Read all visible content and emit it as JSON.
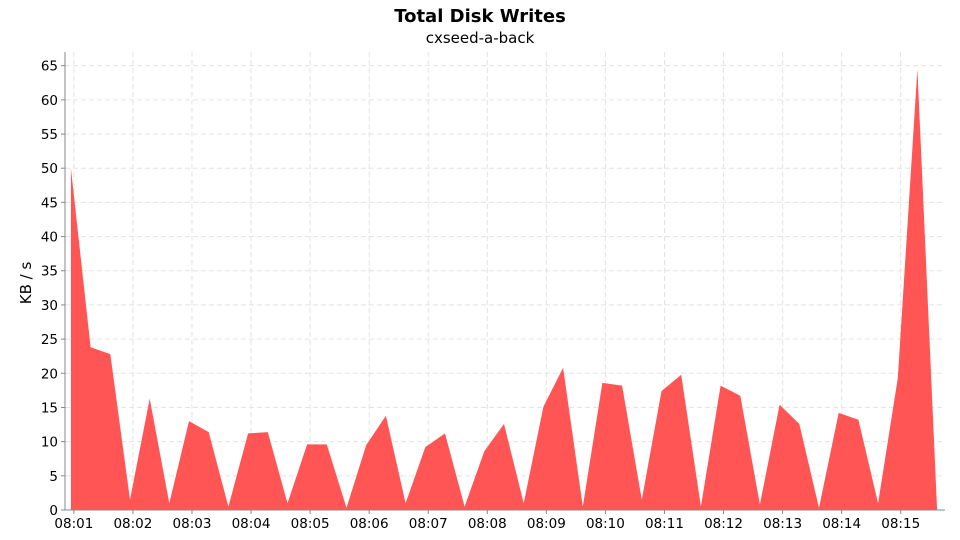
{
  "chart_data": {
    "type": "area",
    "title": "Total Disk Writes",
    "subtitle": "cxseed-a-back",
    "xlabel": "",
    "ylabel": "KB / s",
    "ylim": [
      0,
      67
    ],
    "yticks": [
      0,
      5,
      10,
      15,
      20,
      25,
      30,
      35,
      40,
      45,
      50,
      55,
      60,
      65
    ],
    "xticks": [
      "08:01",
      "08:02",
      "08:03",
      "08:04",
      "08:05",
      "08:06",
      "08:07",
      "08:08",
      "08:09",
      "08:10",
      "08:11",
      "08:12",
      "08:13",
      "08:14",
      "08:15"
    ],
    "grid": true,
    "color": "#ff5555",
    "series": [
      {
        "x": [
          "08:00:57",
          "08:01:17",
          "08:01:37",
          "08:01:57",
          "08:02:17",
          "08:02:37",
          "08:02:57",
          "08:03:17",
          "08:03:37",
          "08:03:57",
          "08:04:17",
          "08:04:37",
          "08:04:57",
          "08:05:17",
          "08:05:37",
          "08:05:57",
          "08:06:17",
          "08:06:37",
          "08:06:57",
          "08:07:17",
          "08:07:37",
          "08:07:57",
          "08:08:17",
          "08:08:37",
          "08:08:57",
          "08:09:17",
          "08:09:37",
          "08:09:57",
          "08:10:17",
          "08:10:37",
          "08:10:57",
          "08:11:17",
          "08:11:37",
          "08:11:57",
          "08:12:17",
          "08:12:37",
          "08:12:57",
          "08:13:17",
          "08:13:37",
          "08:13:57",
          "08:14:17",
          "08:14:37",
          "08:14:57",
          "08:15:17",
          "08:15:37"
        ],
        "values": [
          50,
          23.8,
          22.8,
          1.5,
          16.3,
          1.0,
          13.0,
          11.4,
          0.5,
          11.2,
          11.4,
          1.0,
          9.6,
          9.6,
          0.3,
          9.5,
          13.8,
          1.0,
          9.2,
          11.2,
          0.5,
          8.6,
          12.6,
          1.0,
          15.1,
          20.8,
          0.5,
          18.6,
          18.2,
          1.5,
          17.4,
          19.8,
          0.5,
          18.2,
          16.7,
          0.8,
          15.4,
          12.6,
          0.3,
          14.2,
          13.2,
          1.0,
          19.3,
          64.5,
          0.0
        ]
      }
    ]
  }
}
